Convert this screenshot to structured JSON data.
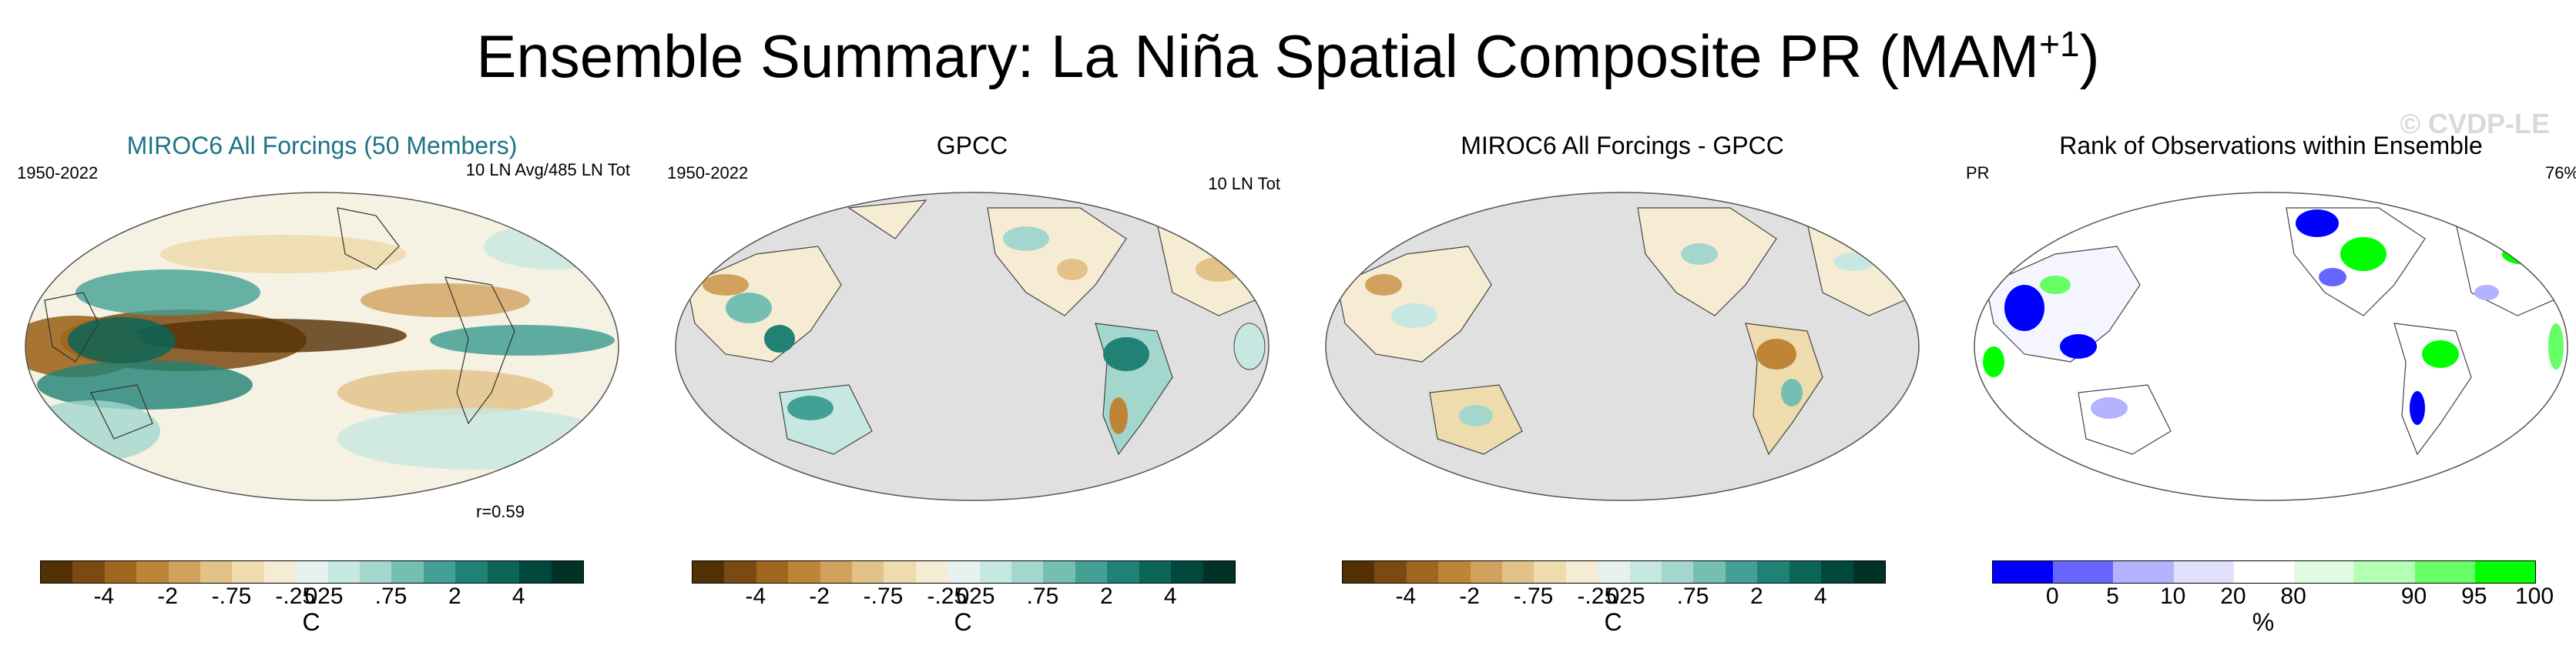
{
  "figure": {
    "title_main": "Ensemble Summary: La Niña Spatial Composite PR (MAM",
    "title_sup": "+1",
    "title_close": ")",
    "watermark": "© CVDP-LE"
  },
  "panels": [
    {
      "title": "MIROC6 All Forcings (50 Members)",
      "left_label": "1950-2022",
      "right_label": "10 LN Avg/485 LN Tot",
      "bottom_label": "r=0.59",
      "ocean_fill": "shaded",
      "map_type": "ensemble-composite"
    },
    {
      "title": "GPCC",
      "left_label": "1950-2022",
      "right_label": "10 LN Tot",
      "bottom_label": "",
      "ocean_fill": "missing-gray",
      "map_type": "observed-composite"
    },
    {
      "title": "MIROC6 All Forcings - GPCC",
      "left_label": "",
      "right_label": "",
      "bottom_label": "",
      "ocean_fill": "missing-gray",
      "map_type": "difference"
    },
    {
      "title": "Rank of Observations within Ensemble",
      "left_label": "PR",
      "right_label": "76%",
      "bottom_label": "",
      "ocean_fill": "white",
      "map_type": "rank"
    }
  ],
  "colorbars": {
    "precip": {
      "unit": "C",
      "colors": [
        "#543005",
        "#7b4a12",
        "#a0661e",
        "#bf8536",
        "#d1a25e",
        "#e2c286",
        "#eedcae",
        "#f6ecd4",
        "#e6f2f0",
        "#c7e8e1",
        "#a3d7cd",
        "#74bfb2",
        "#43a094",
        "#1f8275",
        "#0b6558",
        "#00483d",
        "#003228"
      ],
      "tick_labels": [
        "-4",
        "-2",
        "-.75",
        "-.25",
        "0",
        ".25",
        ".75",
        "2",
        "4"
      ]
    },
    "rank": {
      "unit": "%",
      "colors": [
        "#0000ff",
        "#6666ff",
        "#b3b3ff",
        "#e1e1fb",
        "#ffffff",
        "#e1fbe1",
        "#b3ffb3",
        "#66ff66",
        "#00ff00"
      ],
      "tick_labels": [
        "0",
        "5",
        "10",
        "20",
        "80",
        "90",
        "95",
        "100"
      ]
    }
  },
  "colors": {
    "title_teal": "#1d7487",
    "missing_gray": "#e0e0e0",
    "neutral": "#f5f1e3"
  }
}
